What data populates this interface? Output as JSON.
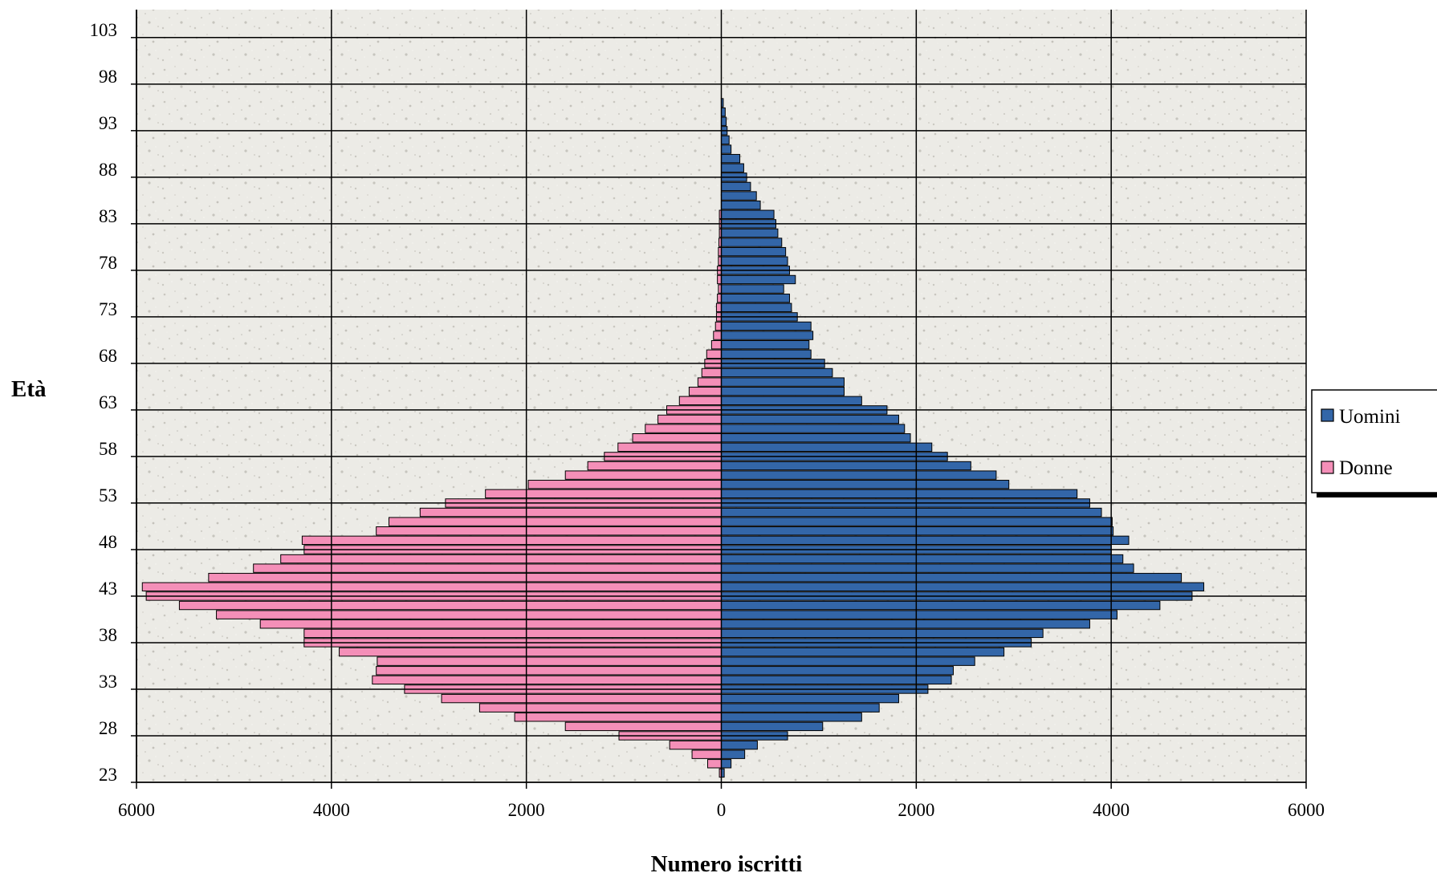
{
  "chart_data": {
    "type": "bar",
    "orientation": "horizontal",
    "layout": "population-pyramid",
    "xlabel": "Numero iscritti",
    "ylabel": "Età",
    "xlim": [
      -6000,
      6000
    ],
    "x_ticks": [
      -6000,
      -4000,
      -2000,
      0,
      2000,
      4000,
      6000
    ],
    "x_tick_labels": [
      "6000",
      "4000",
      "2000",
      "0",
      "2000",
      "4000",
      "6000"
    ],
    "ylim": [
      23,
      105
    ],
    "y_ticks": [
      23,
      28,
      33,
      38,
      43,
      48,
      53,
      58,
      63,
      68,
      73,
      78,
      83,
      88,
      93,
      98,
      103
    ],
    "y_tick_labels": [
      "23",
      "28",
      "33",
      "38",
      "43",
      "48",
      "53",
      "58",
      "63",
      "68",
      "73",
      "78",
      "83",
      "88",
      "93",
      "98",
      "103"
    ],
    "grid": true,
    "plot_background": "#ecebe6",
    "legend_position": "right",
    "categories": [
      23,
      24,
      25,
      26,
      27,
      28,
      29,
      30,
      31,
      32,
      33,
      34,
      35,
      36,
      37,
      38,
      39,
      40,
      41,
      42,
      43,
      44,
      45,
      46,
      47,
      48,
      49,
      50,
      51,
      52,
      53,
      54,
      55,
      56,
      57,
      58,
      59,
      60,
      61,
      62,
      63,
      64,
      65,
      66,
      67,
      68,
      69,
      70,
      71,
      72,
      73,
      74,
      75,
      76,
      77,
      78,
      79,
      80,
      81,
      82,
      83,
      84,
      85,
      86,
      87,
      88,
      89,
      90,
      91,
      92,
      93,
      94,
      95
    ],
    "series": [
      {
        "name": "Uomini",
        "color": "#3366a8",
        "side": "right",
        "values": [
          30,
          100,
          240,
          370,
          680,
          1040,
          1440,
          1620,
          1820,
          2120,
          2360,
          2380,
          2600,
          2900,
          3180,
          3300,
          3780,
          4060,
          4500,
          4830,
          4950,
          4720,
          4230,
          4120,
          4000,
          4180,
          4020,
          4010,
          3900,
          3780,
          3650,
          2950,
          2820,
          2560,
          2320,
          2160,
          1940,
          1880,
          1820,
          1700,
          1440,
          1260,
          1260,
          1140,
          1060,
          920,
          900,
          940,
          920,
          780,
          720,
          700,
          640,
          760,
          700,
          680,
          660,
          620,
          580,
          560,
          540,
          400,
          360,
          300,
          260,
          230,
          190,
          100,
          80,
          60,
          50,
          40,
          20
        ]
      },
      {
        "name": "Donne",
        "color": "#f48fb8",
        "side": "left",
        "values": [
          20,
          140,
          300,
          530,
          1050,
          1600,
          2120,
          2480,
          2870,
          3250,
          3580,
          3540,
          3530,
          3920,
          4280,
          4280,
          4730,
          5180,
          5560,
          5900,
          5940,
          5260,
          4800,
          4520,
          4280,
          4300,
          3540,
          3410,
          3090,
          2830,
          2420,
          1980,
          1600,
          1370,
          1200,
          1060,
          910,
          780,
          650,
          560,
          430,
          330,
          240,
          200,
          170,
          150,
          100,
          80,
          60,
          50,
          50,
          40,
          30,
          40,
          40,
          30,
          30,
          25,
          20,
          20,
          20,
          0,
          0,
          0,
          0,
          0,
          0,
          0,
          0,
          0,
          0,
          0,
          0
        ]
      }
    ]
  }
}
